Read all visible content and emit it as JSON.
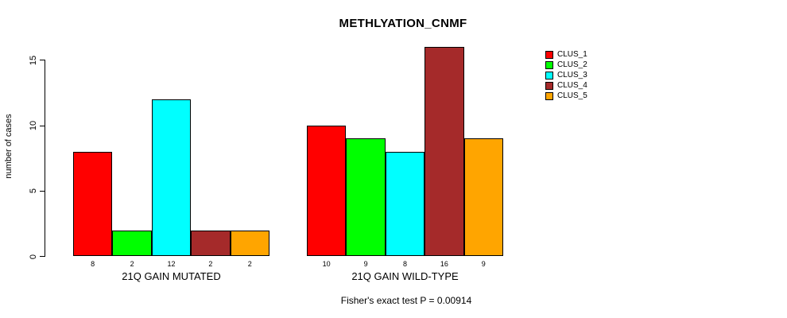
{
  "chart_data": {
    "type": "bar",
    "title": "METHLYATION_CNMF",
    "ylabel": "number of cases",
    "xlabel": "",
    "ylim": [
      0,
      15
    ],
    "yticks": [
      0,
      5,
      10,
      15
    ],
    "grid": false,
    "legend_position": "right",
    "categories": [
      "21Q GAIN MUTATED",
      "21Q GAIN WILD-TYPE"
    ],
    "series": [
      {
        "name": "CLUS_1",
        "color": "#FF0000",
        "values": [
          8,
          10
        ]
      },
      {
        "name": "CLUS_2",
        "color": "#00FF00",
        "values": [
          2,
          9
        ]
      },
      {
        "name": "CLUS_3",
        "color": "#00FFFF",
        "values": [
          12,
          8
        ]
      },
      {
        "name": "CLUS_4",
        "color": "#A52A2A",
        "values": [
          2,
          16
        ]
      },
      {
        "name": "CLUS_5",
        "color": "#FFA500",
        "values": [
          2,
          9
        ]
      }
    ],
    "bar_value_labels": [
      [
        "8",
        "2",
        "12",
        "2",
        "2"
      ],
      [
        "10",
        "9",
        "8",
        "16",
        "9"
      ]
    ],
    "annotation": "Fisher's exact test P = 0.00914",
    "colors": {
      "axis": "#000000",
      "background": "#FFFFFF",
      "text": "#000000"
    }
  }
}
